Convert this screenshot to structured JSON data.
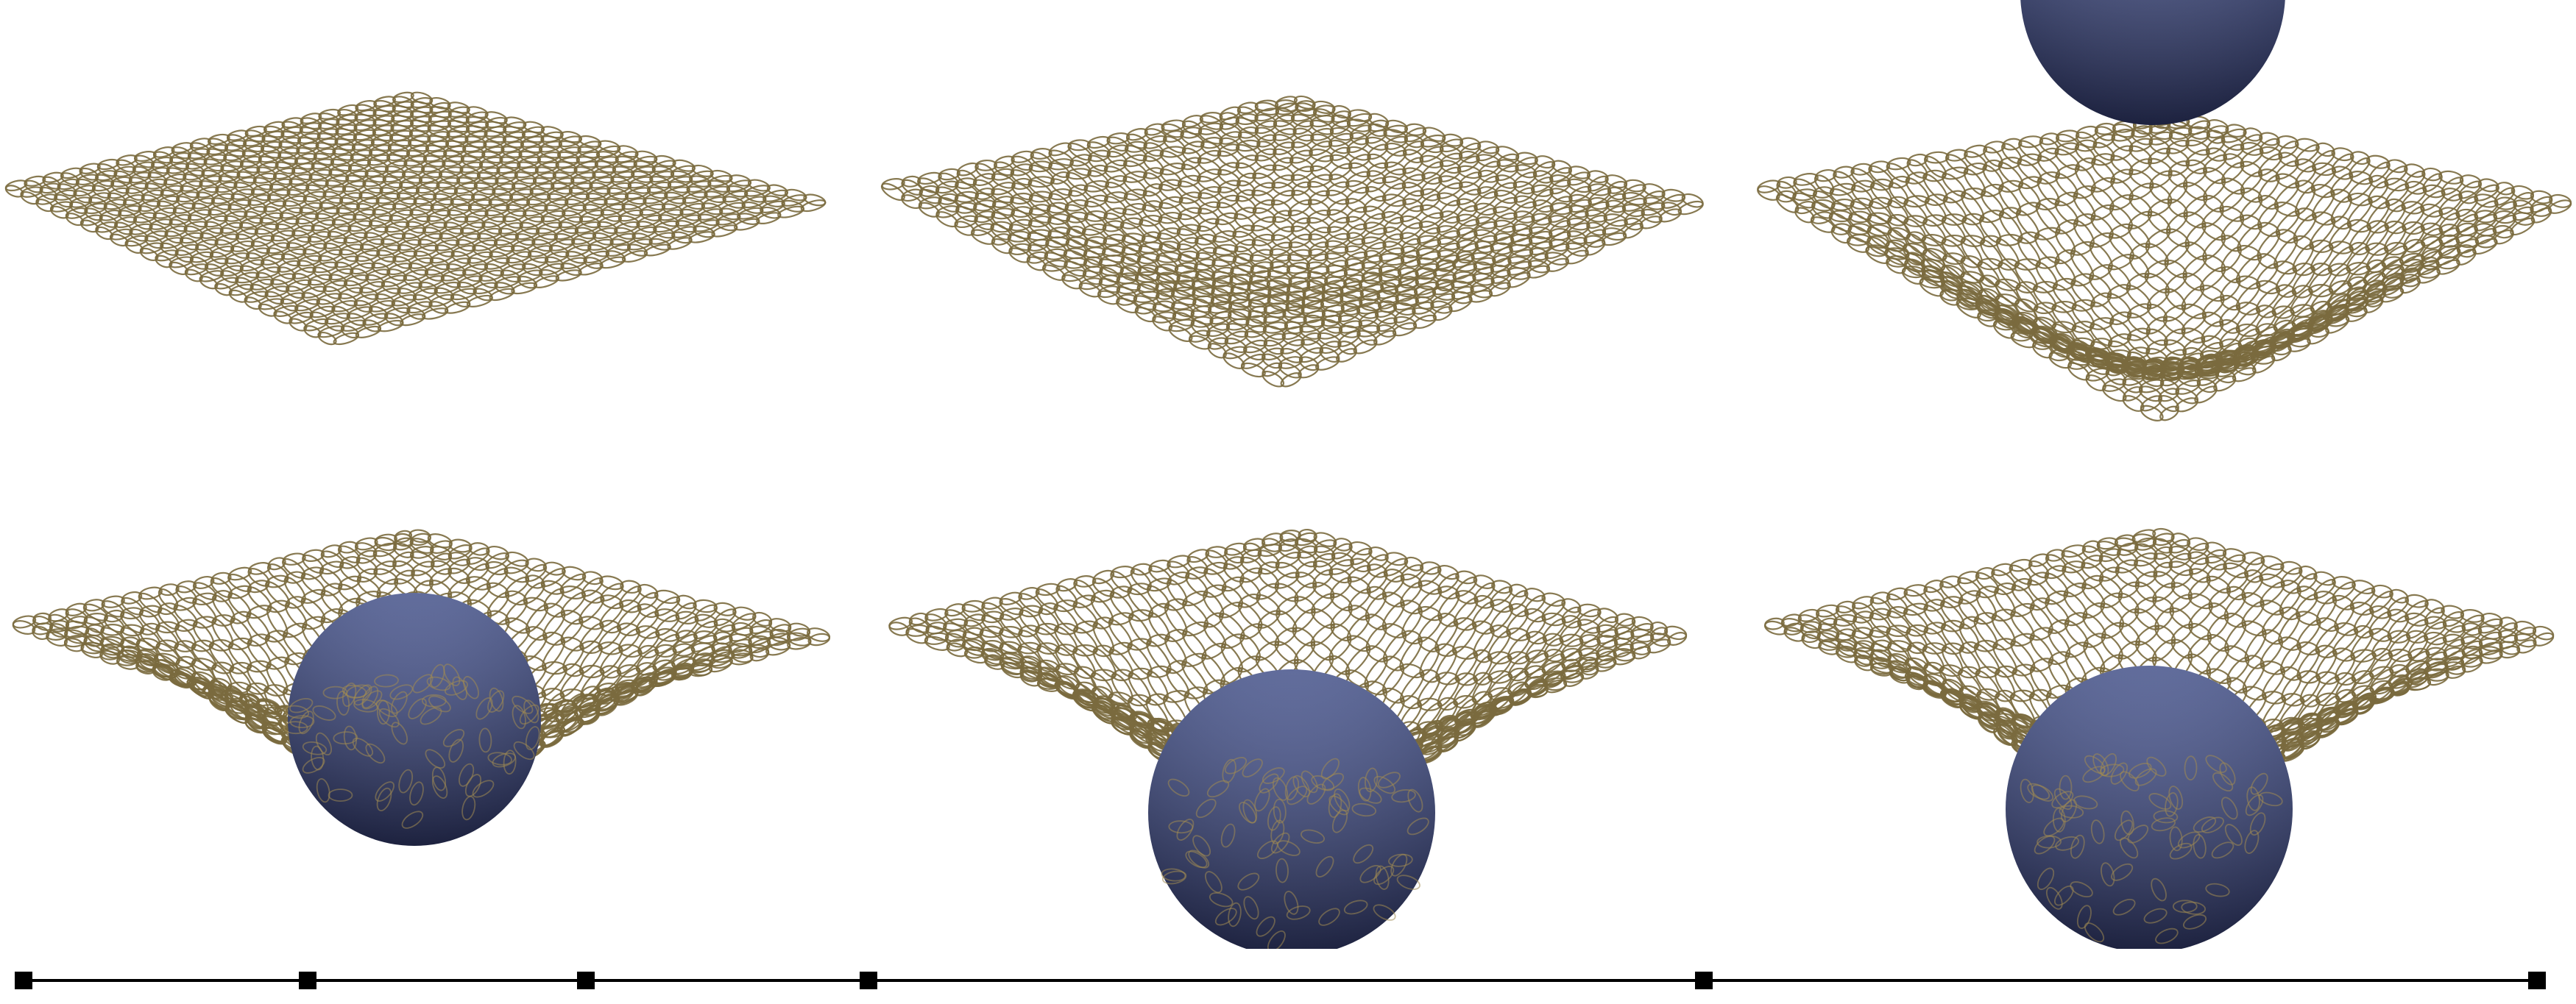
{
  "figure": {
    "background": "#ffffff",
    "chain_color": "#7a6a3e",
    "sphere_top": "#5d6aa0",
    "sphere_bottom": "#1f2548",
    "timeline_color": "#000000",
    "tick_marker_shape": "filled-square"
  },
  "frames": [
    {
      "name": "frame-1-flat-net",
      "sphere": "hidden",
      "net_state": "flat"
    },
    {
      "name": "frame-2-net-settling",
      "sphere": "hidden",
      "net_state": "slight-sag"
    },
    {
      "name": "frame-3-sphere-falling",
      "sphere": "above-net",
      "net_state": "sagging"
    },
    {
      "name": "frame-4-sphere-contact",
      "sphere": "in-net",
      "net_state": "deep-sag"
    },
    {
      "name": "frame-5-sphere-deep",
      "sphere": "bottom-of-net",
      "net_state": "stretched"
    },
    {
      "name": "frame-6-sphere-rest",
      "sphere": "bottom-of-net",
      "net_state": "stretched"
    }
  ]
}
